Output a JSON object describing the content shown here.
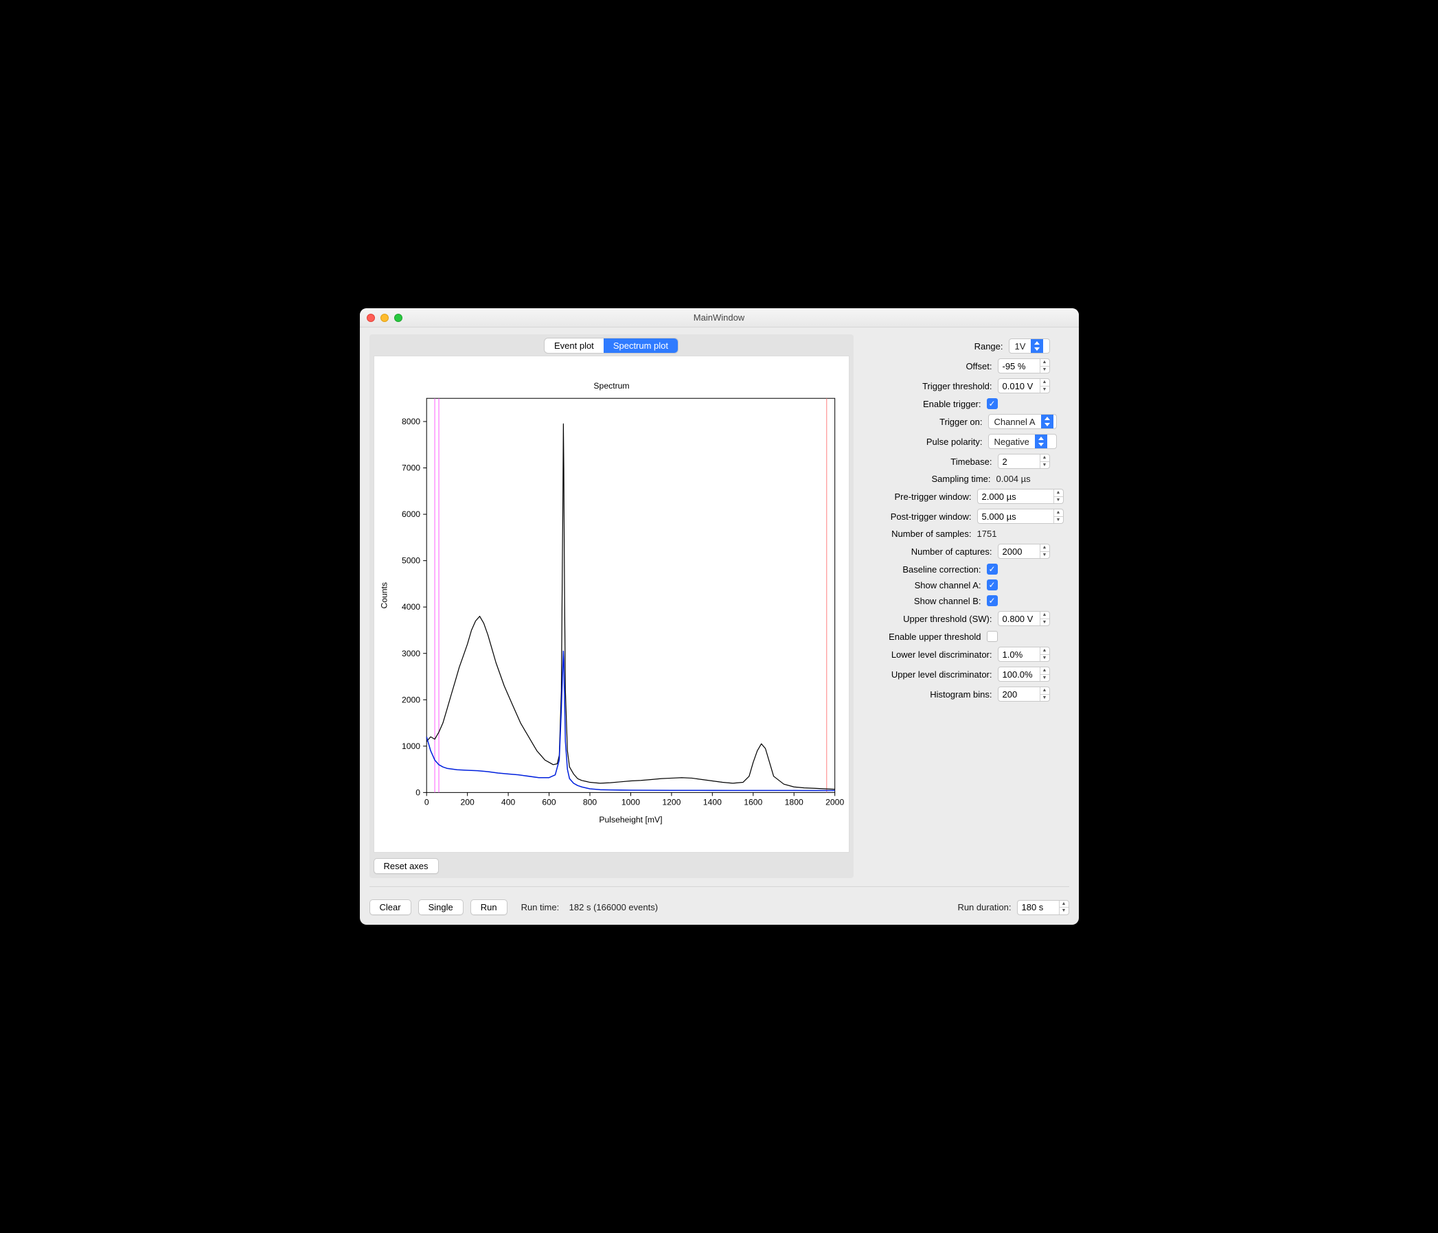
{
  "window": {
    "title": "MainWindow"
  },
  "tabs": {
    "event": "Event plot",
    "spectrum": "Spectrum plot",
    "active": "spectrum"
  },
  "chart": {
    "type": "line",
    "title": "Spectrum",
    "xlabel": "Pulseheight [mV]",
    "ylabel": "Counts",
    "xlim": [
      0,
      2000
    ],
    "ylim": [
      0,
      8500
    ],
    "xtick_step": 200,
    "ytick_step": 1000,
    "background_color": "#ffffff",
    "axis_color": "#000000",
    "series": [
      {
        "name": "channel-a",
        "color": "#000000",
        "width": 1.2,
        "x": [
          0,
          20,
          40,
          60,
          80,
          100,
          120,
          140,
          160,
          180,
          200,
          220,
          240,
          260,
          280,
          300,
          320,
          340,
          360,
          380,
          400,
          420,
          440,
          460,
          480,
          500,
          520,
          540,
          560,
          580,
          600,
          620,
          640,
          650,
          660,
          668,
          670,
          672,
          676,
          680,
          690,
          700,
          720,
          740,
          760,
          780,
          800,
          850,
          900,
          950,
          1000,
          1050,
          1100,
          1150,
          1200,
          1250,
          1300,
          1350,
          1400,
          1450,
          1500,
          1550,
          1580,
          1600,
          1620,
          1640,
          1660,
          1680,
          1700,
          1750,
          1800,
          1850,
          1900,
          1950,
          2000
        ],
        "y": [
          1100,
          1200,
          1150,
          1300,
          1500,
          1800,
          2100,
          2400,
          2700,
          2950,
          3200,
          3500,
          3700,
          3800,
          3650,
          3400,
          3100,
          2800,
          2550,
          2300,
          2100,
          1900,
          1700,
          1500,
          1350,
          1200,
          1050,
          900,
          800,
          700,
          650,
          600,
          620,
          800,
          2200,
          6500,
          7950,
          7000,
          4200,
          2200,
          900,
          550,
          400,
          300,
          260,
          240,
          220,
          200,
          210,
          230,
          250,
          260,
          280,
          300,
          310,
          320,
          310,
          280,
          250,
          220,
          200,
          220,
          350,
          650,
          900,
          1050,
          950,
          650,
          350,
          180,
          120,
          100,
          90,
          80,
          70
        ]
      },
      {
        "name": "channel-b",
        "color": "#0020dd",
        "width": 1.5,
        "x": [
          0,
          20,
          40,
          60,
          80,
          100,
          150,
          200,
          250,
          300,
          350,
          400,
          450,
          500,
          550,
          600,
          630,
          650,
          660,
          668,
          670,
          672,
          676,
          680,
          690,
          700,
          720,
          740,
          760,
          800,
          850,
          900,
          950,
          1000,
          1100,
          1200,
          1300,
          1400,
          1500,
          1600,
          1700,
          1800,
          1900,
          2000
        ],
        "y": [
          1200,
          900,
          700,
          600,
          550,
          520,
          490,
          480,
          470,
          450,
          420,
          400,
          380,
          350,
          320,
          320,
          380,
          700,
          1800,
          2800,
          3050,
          2850,
          2000,
          1100,
          500,
          300,
          200,
          150,
          120,
          80,
          60,
          55,
          52,
          50,
          48,
          47,
          46,
          45,
          44,
          44,
          43,
          43,
          42,
          42
        ]
      }
    ],
    "vlines": [
      {
        "x": 40,
        "color": "#ff60ff",
        "width": 1
      },
      {
        "x": 60,
        "color": "#ff60ff",
        "width": 1
      },
      {
        "x": 1960,
        "color": "#ff8080",
        "width": 1
      }
    ]
  },
  "resetAxes": "Reset axes",
  "controls": {
    "range": {
      "label": "Range:",
      "value": "1V"
    },
    "offset": {
      "label": "Offset:",
      "value": "-95 %"
    },
    "trigThr": {
      "label": "Trigger threshold:",
      "value": "0.010 V"
    },
    "enTrig": {
      "label": "Enable trigger:",
      "checked": true
    },
    "trigOn": {
      "label": "Trigger on:",
      "value": "Channel A"
    },
    "polarity": {
      "label": "Pulse polarity:",
      "value": "Negative"
    },
    "timebase": {
      "label": "Timebase:",
      "value": "2"
    },
    "sampTime": {
      "label": "Sampling time:",
      "value": "0.004 µs"
    },
    "preWin": {
      "label": "Pre-trigger window:",
      "value": "2.000 µs"
    },
    "postWin": {
      "label": "Post-trigger window:",
      "value": "5.000 µs"
    },
    "nSamples": {
      "label": "Number of samples:",
      "value": "1751"
    },
    "nCapt": {
      "label": "Number of captures:",
      "value": "2000"
    },
    "baseCorr": {
      "label": "Baseline correction:",
      "checked": true
    },
    "showA": {
      "label": "Show channel A:",
      "checked": true
    },
    "showB": {
      "label": "Show channel B:",
      "checked": true
    },
    "upperThr": {
      "label": "Upper threshold (SW):",
      "value": "0.800 V"
    },
    "enUpper": {
      "label": "Enable upper threshold",
      "checked": false
    },
    "lld": {
      "label": "Lower level discriminator:",
      "value": "1.0%"
    },
    "uld": {
      "label": "Upper level discriminator:",
      "value": "100.0%"
    },
    "bins": {
      "label": "Histogram bins:",
      "value": "200"
    }
  },
  "bottom": {
    "clear": "Clear",
    "single": "Single",
    "run": "Run",
    "runtimeLabel": "Run time:",
    "runtimeValue": "182 s  (166000 events)",
    "runDurLabel": "Run duration:",
    "runDurValue": "180 s"
  }
}
